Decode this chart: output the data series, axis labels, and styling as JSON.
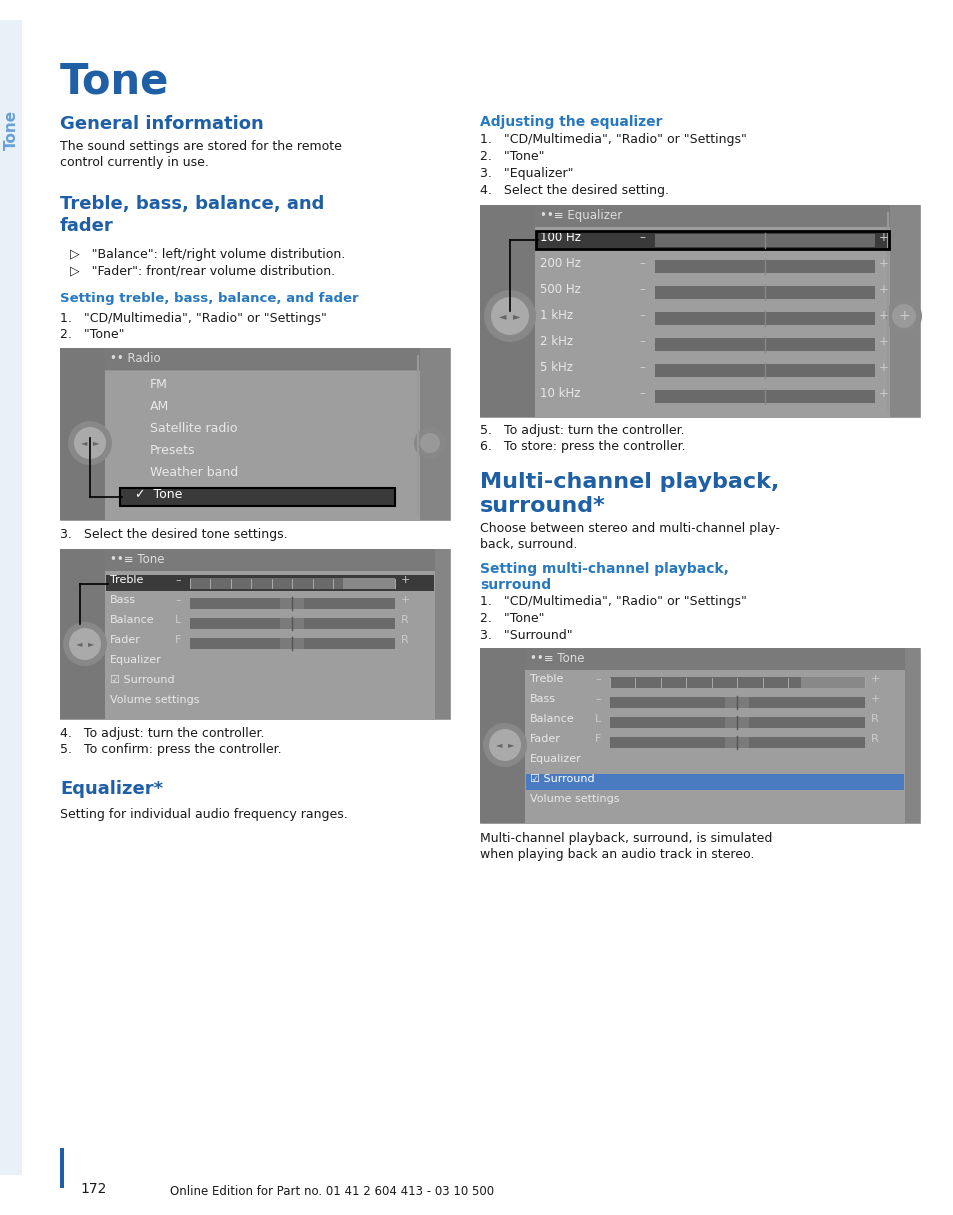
{
  "page_bg": "#ffffff",
  "blue_heading": "#1f5fa6",
  "blue_subheading": "#2879c0",
  "text_color": "#1a1a1a",
  "sidebar_text_color": "#6a9fd8",
  "sidebar_bg": "#e8f0f8",
  "page_number": "172",
  "footer_text": "Online Edition for Part no. 01 41 2 604 413 - 03 10 500",
  "main_title": "Tone",
  "sidebar_label": "Tone",
  "section1_title": "General information",
  "section1_body1": "The sound settings are stored for the remote",
  "section1_body2": "control currently in use.",
  "section2_title_line1": "Treble, bass, balance, and",
  "section2_title_line2": "fader",
  "section2_bullet1": "▷   \"Balance\": left/right volume distribution.",
  "section2_bullet2": "▷   \"Fader\": front/rear volume distribution.",
  "section2_sub": "Setting treble, bass, balance, and fader",
  "step1_cd": "1.   \"CD/Multimedia\", \"Radio\" or \"Settings\"",
  "step2_tone": "2.   \"Tone\"",
  "step3_select_tone": "3.   Select the desired tone settings.",
  "step4_adjust": "4.   To adjust: turn the controller.",
  "step5_confirm": "5.   To confirm: press the controller.",
  "section3_title": "Equalizer*",
  "section3_body": "Setting for individual audio frequency ranges.",
  "right_title1": "Adjusting the equalizer",
  "right_step1": "1.   \"CD/Multimedia\", \"Radio\" or \"Settings\"",
  "right_step2": "2.   \"Tone\"",
  "right_step3": "3.   \"Equalizer\"",
  "right_step4": "4.   Select the desired setting.",
  "right_step5": "5.   To adjust: turn the controller.",
  "right_step6": "6.   To store: press the controller.",
  "right_title2_line1": "Multi-channel playback,",
  "right_title2_line2": "surround*",
  "right_body2_line1": "Choose between stereo and multi-channel play-",
  "right_body2_line2": "back, surround.",
  "right_title3_line1": "Setting multi-channel playback,",
  "right_title3_line2": "surround",
  "right_step3_1": "1.   \"CD/Multimedia\", \"Radio\" or \"Settings\"",
  "right_step3_2": "2.   \"Tone\"",
  "right_step3_3": "3.   \"Surround\"",
  "bottom_line1": "Multi-channel playback, surround, is simulated",
  "bottom_line2": "when playing back an audio track in stereo.",
  "img_gray_dark": "#8c8c8c",
  "img_gray_mid": "#9e9e9e",
  "img_gray_light": "#b5b5b5",
  "img_bar_dark": "#6a6a6a",
  "img_bar_highlight": "#5a5a5a",
  "img_selected_bg": "#3a3a3a",
  "img_surround_bg": "#4a7abf",
  "img_title_bar": "#7a7a7a",
  "img_text_white": "#ffffff",
  "img_text_light": "#e8e8e8",
  "img_text_gray": "#cccccc"
}
